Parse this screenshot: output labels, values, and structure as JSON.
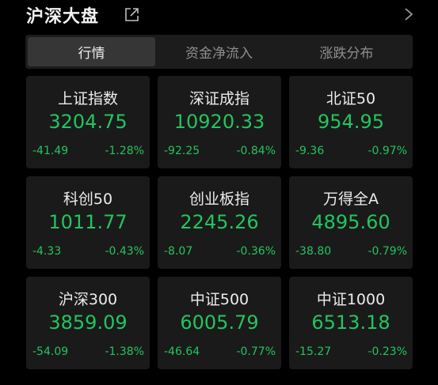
{
  "header": {
    "title": "沪深大盘"
  },
  "tabs": [
    {
      "label": "行情",
      "active": true
    },
    {
      "label": "资金净流入",
      "active": false
    },
    {
      "label": "涨跌分布",
      "active": false
    }
  ],
  "colors": {
    "down": "#22c55e",
    "card_bg": "#1a1a1a",
    "background": "#000000"
  },
  "indices": [
    {
      "name": "上证指数",
      "price": "3204.75",
      "change": "-41.49",
      "pct": "-1.28%"
    },
    {
      "name": "深证成指",
      "price": "10920.33",
      "change": "-92.25",
      "pct": "-0.84%"
    },
    {
      "name": "北证50",
      "price": "954.95",
      "change": "-9.36",
      "pct": "-0.97%"
    },
    {
      "name": "科创50",
      "price": "1011.77",
      "change": "-4.33",
      "pct": "-0.43%"
    },
    {
      "name": "创业板指",
      "price": "2245.26",
      "change": "-8.07",
      "pct": "-0.36%"
    },
    {
      "name": "万得全A",
      "price": "4895.60",
      "change": "-38.80",
      "pct": "-0.79%"
    },
    {
      "name": "沪深300",
      "price": "3859.09",
      "change": "-54.09",
      "pct": "-1.38%"
    },
    {
      "name": "中证500",
      "price": "6005.79",
      "change": "-46.64",
      "pct": "-0.77%"
    },
    {
      "name": "中证1000",
      "price": "6513.18",
      "change": "-15.27",
      "pct": "-0.23%"
    }
  ]
}
